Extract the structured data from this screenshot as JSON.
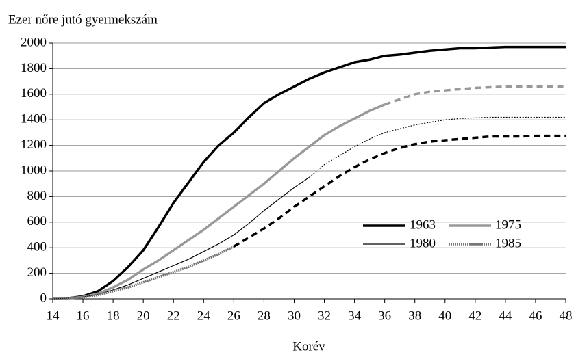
{
  "chart_data": {
    "type": "line",
    "title": "Ezer nőre jutó gyermekszám",
    "x_label": "Korév",
    "x": [
      14,
      15,
      16,
      17,
      18,
      19,
      20,
      21,
      22,
      23,
      24,
      25,
      26,
      27,
      28,
      29,
      30,
      31,
      32,
      33,
      34,
      35,
      36,
      37,
      38,
      39,
      40,
      41,
      42,
      43,
      44,
      45,
      46,
      47,
      48
    ],
    "xlim": [
      14,
      48
    ],
    "xticks": [
      14,
      16,
      18,
      20,
      22,
      24,
      26,
      28,
      30,
      32,
      34,
      36,
      38,
      40,
      42,
      44,
      46,
      48
    ],
    "ylim": [
      0,
      2000
    ],
    "yticks": [
      0,
      200,
      400,
      600,
      800,
      1000,
      1200,
      1400,
      1600,
      1800,
      2000
    ],
    "grid": true,
    "series": [
      {
        "name": "1963",
        "color": "#000000",
        "width": 3.5,
        "values": [
          0,
          5,
          20,
          60,
          140,
          250,
          380,
          560,
          750,
          910,
          1070,
          1200,
          1300,
          1420,
          1530,
          1600,
          1660,
          1720,
          1770,
          1810,
          1850,
          1870,
          1900,
          1910,
          1925,
          1940,
          1950,
          1960,
          1960,
          1965,
          1970,
          1970,
          1970,
          1970,
          1970
        ]
      },
      {
        "name": "1975",
        "color": "#999999",
        "width": 3.5,
        "dash_from": 36,
        "projection_color": "#999999",
        "values": [
          0,
          5,
          15,
          40,
          90,
          150,
          230,
          300,
          380,
          460,
          540,
          630,
          720,
          810,
          900,
          1000,
          1100,
          1190,
          1280,
          1350,
          1410,
          1470,
          1520,
          1560,
          1600,
          1620,
          1630,
          1640,
          1650,
          1655,
          1660,
          1660,
          1660,
          1660,
          1660
        ]
      },
      {
        "name": "1980",
        "color": "#000000",
        "width": 1.2,
        "dash_from": 31,
        "projection_color": "#000000",
        "values": [
          0,
          5,
          15,
          35,
          70,
          110,
          160,
          210,
          260,
          310,
          370,
          430,
          500,
          590,
          690,
          780,
          870,
          950,
          1050,
          1120,
          1190,
          1250,
          1300,
          1330,
          1360,
          1380,
          1400,
          1410,
          1415,
          1420,
          1420,
          1420,
          1420,
          1420,
          1420
        ]
      },
      {
        "name": "1985",
        "color": "#777777",
        "width": 3.5,
        "dash_from": 26,
        "projection_color": "#000000",
        "values": [
          0,
          5,
          12,
          30,
          60,
          90,
          130,
          170,
          210,
          250,
          300,
          350,
          410,
          480,
          550,
          630,
          720,
          800,
          880,
          960,
          1030,
          1090,
          1140,
          1180,
          1210,
          1230,
          1240,
          1250,
          1260,
          1270,
          1270,
          1270,
          1275,
          1275,
          1275
        ]
      }
    ]
  }
}
